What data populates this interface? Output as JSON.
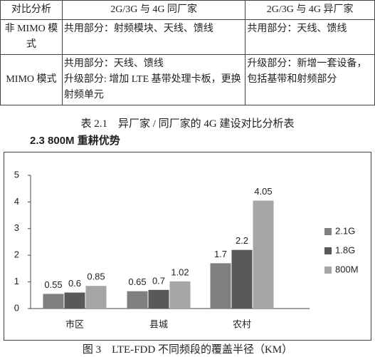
{
  "table": {
    "header": [
      "对比分析",
      "2G/3G 与 4G 同厂家",
      "2G/3G 与 4G 异厂家"
    ],
    "rows": [
      [
        [
          "非 MIMO 模式"
        ],
        [
          "共用部分：射频模块、天线、馈线"
        ],
        [
          "共用部分：天线、馈线"
        ]
      ],
      [
        [
          "MIMO 模式"
        ],
        [
          "共用部分：天线、馈线",
          "升级部分: 增加 LTE 基带处理卡板，更换射频单元"
        ],
        [
          "升级部分：新增一套设备，包括基带和射频部分"
        ]
      ]
    ]
  },
  "table_caption": "表 2.1　异厂家 / 同厂家的 4G 建设对比分析表",
  "section_heading": "2.3 800M 重耕优势",
  "chart_data": {
    "type": "bar",
    "categories": [
      "市区",
      "县城",
      "农村"
    ],
    "series": [
      {
        "name": "2.1G",
        "color": "#7f7f7f",
        "values": [
          0.55,
          0.65,
          1.7
        ]
      },
      {
        "name": "1.8G",
        "color": "#595959",
        "values": [
          0.6,
          0.7,
          2.2
        ]
      },
      {
        "name": "800M",
        "color": "#a6a6a6",
        "values": [
          0.85,
          1.02,
          4.05
        ]
      }
    ],
    "ylim": [
      0,
      5
    ],
    "yticks": [
      0,
      1,
      2,
      3,
      4,
      5
    ],
    "legend": "right"
  },
  "figure_caption": "图 3　LTE-FDD 不同频段的覆盖半径（KM）"
}
